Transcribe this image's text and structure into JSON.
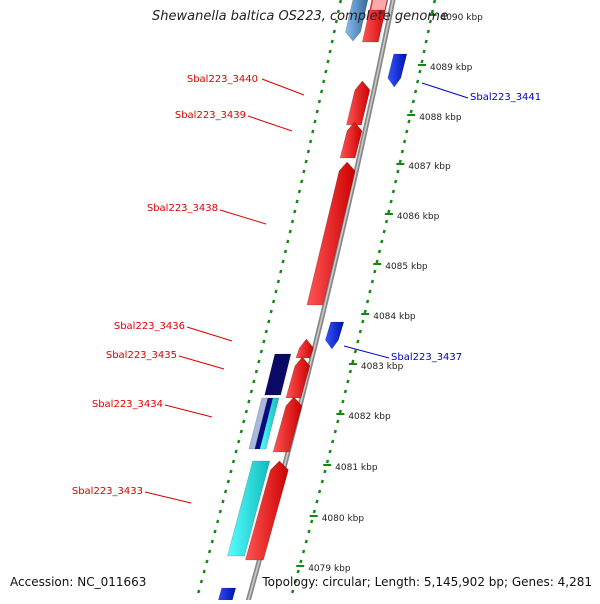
{
  "title": "Shewanella baltica OS223, complete genome",
  "footer": {
    "accession": "Accession: NC_011663",
    "summary": "Topology: circular; Length: 5,145,902 bp; Genes: 4,281"
  },
  "ticks": [
    {
      "label": "4090 kbp",
      "kbp": 4090
    },
    {
      "label": "4089 kbp",
      "kbp": 4089
    },
    {
      "label": "4088 kbp",
      "kbp": 4088
    },
    {
      "label": "4087 kbp",
      "kbp": 4087
    },
    {
      "label": "4086 kbp",
      "kbp": 4086
    },
    {
      "label": "4085 kbp",
      "kbp": 4085
    },
    {
      "label": "4084 kbp",
      "kbp": 4084
    },
    {
      "label": "4083 kbp",
      "kbp": 4083
    },
    {
      "label": "4082 kbp",
      "kbp": 4082
    },
    {
      "label": "4081 kbp",
      "kbp": 4081
    },
    {
      "label": "4080 kbp",
      "kbp": 4080
    },
    {
      "label": "4079 kbp",
      "kbp": 4079
    }
  ],
  "gene_labels": [
    {
      "name": "Sbal223_3440",
      "color": "#dd0000"
    },
    {
      "name": "Sbal223_3439",
      "color": "#dd0000"
    },
    {
      "name": "Sbal223_3438",
      "color": "#dd0000"
    },
    {
      "name": "Sbal223_3436",
      "color": "#dd0000"
    },
    {
      "name": "Sbal223_3435",
      "color": "#dd0000"
    },
    {
      "name": "Sbal223_3434",
      "color": "#dd0000"
    },
    {
      "name": "Sbal223_3433",
      "color": "#dd0000"
    },
    {
      "name": "Sbal223_3441",
      "color": "#0000cc"
    },
    {
      "name": "Sbal223_3437",
      "color": "#0000cc"
    }
  ],
  "colors": {
    "forward_cds": "#ee1111",
    "reverse_cds": "#1133dd",
    "dark_feature": "#0a0a66",
    "cyan_feature": "#22dddd",
    "steel_feature": "#5588bb",
    "pink_feature": "#ffaaaa",
    "backbone": "#888888",
    "tick_mark": "#118811"
  }
}
